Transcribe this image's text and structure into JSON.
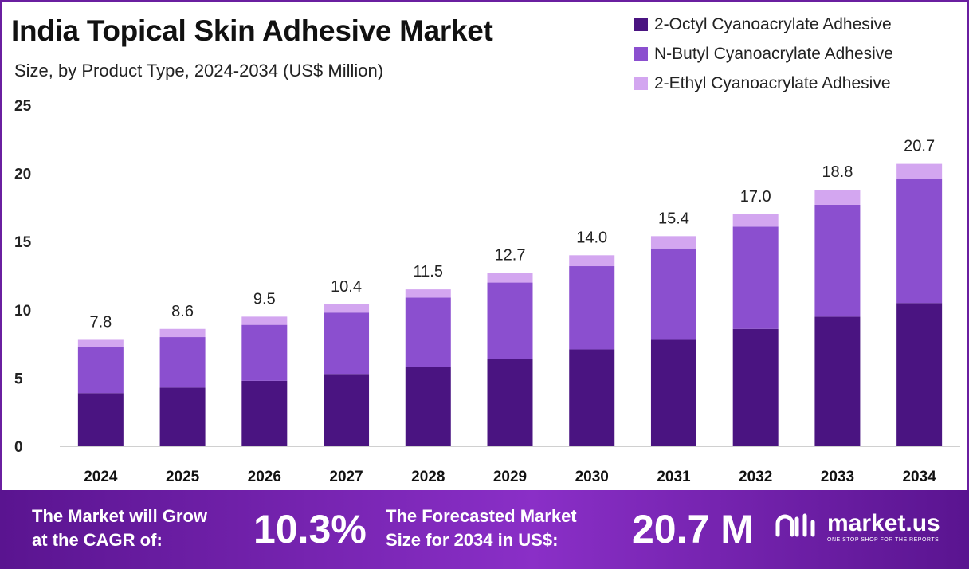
{
  "colors": {
    "series": [
      "#4a1481",
      "#8b4fcf",
      "#d3a6f0"
    ],
    "frame": "#6a1fa0",
    "banner": "#7a25b5"
  },
  "chart_data": {
    "type": "bar",
    "stacked": true,
    "title": "India Topical Skin Adhesive Market",
    "subtitle": "Size, by Product Type, 2024-2034 (US$ Million)",
    "categories": [
      "2024",
      "2025",
      "2026",
      "2027",
      "2028",
      "2029",
      "2030",
      "2031",
      "2032",
      "2033",
      "2034"
    ],
    "series": [
      {
        "name": "2-Octyl Cyanoacrylate Adhesive",
        "values": [
          3.9,
          4.3,
          4.8,
          5.3,
          5.8,
          6.4,
          7.1,
          7.8,
          8.6,
          9.5,
          10.5
        ]
      },
      {
        "name": "N-Butyl Cyanoacrylate Adhesive",
        "values": [
          3.4,
          3.7,
          4.1,
          4.5,
          5.1,
          5.6,
          6.1,
          6.7,
          7.5,
          8.2,
          9.1
        ]
      },
      {
        "name": "2-Ethyl Cyanoacrylate Adhesive",
        "values": [
          0.5,
          0.6,
          0.6,
          0.6,
          0.6,
          0.7,
          0.8,
          0.9,
          0.9,
          1.1,
          1.1
        ]
      }
    ],
    "totals": [
      "7.8",
      "8.6",
      "9.5",
      "10.4",
      "11.5",
      "12.7",
      "14.0",
      "15.4",
      "17.0",
      "18.8",
      "20.7"
    ],
    "yticks": [
      "0",
      "5",
      "10",
      "15",
      "20",
      "25"
    ],
    "ylim": [
      0,
      25
    ],
    "legend": "top-right",
    "grid": false
  },
  "banner": {
    "cagr_label_line1": "The Market will Grow",
    "cagr_label_line2": "at the CAGR of:",
    "cagr_value": "10.3%",
    "forecast_label_line1": "The Forecasted Market",
    "forecast_label_line2": "Size for 2034 in US$:",
    "forecast_value": "20.7 M",
    "logo_name": "market.us",
    "logo_tagline": "ONE STOP SHOP FOR THE REPORTS"
  }
}
